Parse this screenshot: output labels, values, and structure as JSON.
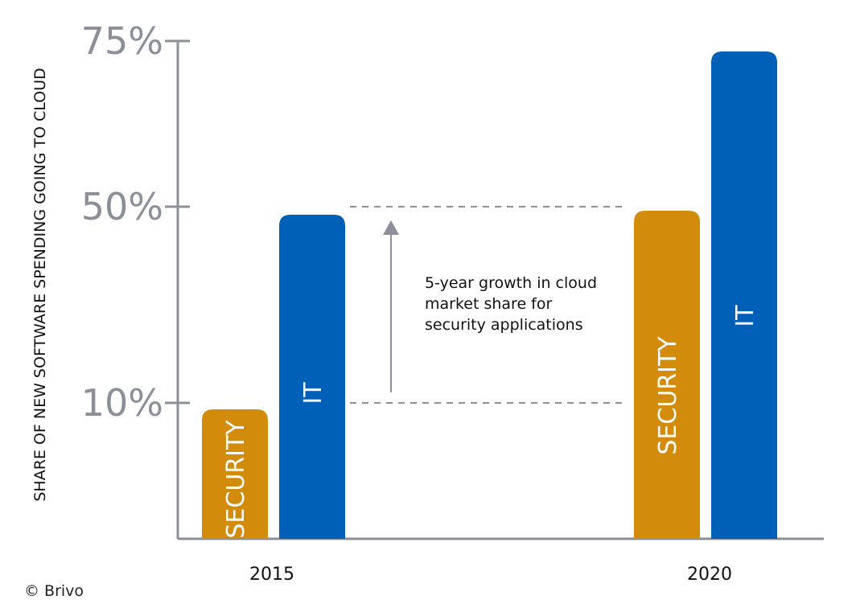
{
  "chart_data": {
    "type": "bar",
    "categories": [
      "2015",
      "2020"
    ],
    "series": [
      {
        "name": "SECURITY",
        "values": [
          10,
          50
        ]
      },
      {
        "name": "IT",
        "values": [
          50,
          75
        ]
      }
    ],
    "title": "",
    "xlabel": "",
    "ylabel": "SHARE OF NEW SOFTWARE SPENDING GOING TO CLOUD",
    "yticks": [
      {
        "value": 10,
        "label": "10%"
      },
      {
        "value": 50,
        "label": "50%"
      },
      {
        "value": 75,
        "label": "75%"
      }
    ],
    "annotation": {
      "lines": [
        "5-year growth in cloud",
        "market share for",
        "security applications"
      ],
      "from_value": 10,
      "to_value": 50
    },
    "colors": {
      "security": "#d38b0b",
      "it": "#005fb7",
      "axis": "#8a8f99"
    }
  },
  "credit": "© Brivo"
}
